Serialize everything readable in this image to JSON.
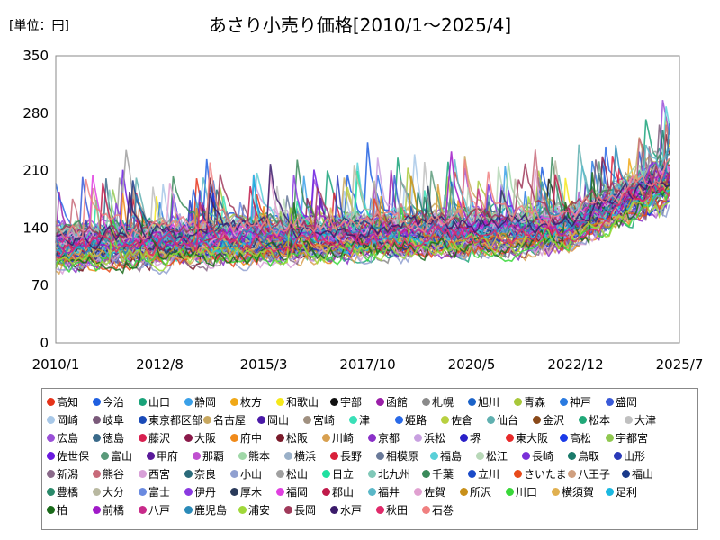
{
  "chart_data": {
    "type": "line",
    "title": "あさり小売り価格[2010/1～2025/4]",
    "unit_label": "[単位：円]",
    "x_ticks": [
      "2010/1",
      "2012/8",
      "2015/3",
      "2017/10",
      "2020/5",
      "2022/12",
      "2025/7"
    ],
    "x_range": [
      "2010/1",
      "2025/7"
    ],
    "y_ticks": [
      0,
      70,
      140,
      210,
      280,
      350
    ],
    "ylim": [
      0,
      350
    ],
    "grid": false,
    "legend_position": "bottom",
    "series": [
      {
        "name": "高知",
        "color": "#e6331a"
      },
      {
        "name": "今治",
        "color": "#1f5fe0"
      },
      {
        "name": "山口",
        "color": "#1aa37a"
      },
      {
        "name": "静岡",
        "color": "#3aa0e8"
      },
      {
        "name": "枚方",
        "color": "#f0a818"
      },
      {
        "name": "和歌山",
        "color": "#f5e81a"
      },
      {
        "name": "宇部",
        "color": "#111111"
      },
      {
        "name": "函館",
        "color": "#9a1fa8"
      },
      {
        "name": "札幌",
        "color": "#8a8a8a"
      },
      {
        "name": "旭川",
        "color": "#1a62c8"
      },
      {
        "name": "青森",
        "color": "#a8c83a"
      },
      {
        "name": "神戸",
        "color": "#2a7ae0"
      },
      {
        "name": "盛岡",
        "color": "#3a5ad8"
      },
      {
        "name": "岡崎",
        "color": "#a8c8e8"
      },
      {
        "name": "岐阜",
        "color": "#7a5a7a"
      },
      {
        "name": "東京都区部",
        "color": "#1a4ab8"
      },
      {
        "name": "名古屋",
        "color": "#c8a860"
      },
      {
        "name": "岡山",
        "color": "#4a1aa8"
      },
      {
        "name": "宮崎",
        "color": "#a09080"
      },
      {
        "name": "津",
        "color": "#3ae0b8"
      },
      {
        "name": "姫路",
        "color": "#2a6ae8"
      },
      {
        "name": "佐倉",
        "color": "#b8d040"
      },
      {
        "name": "仙台",
        "color": "#60b0b0"
      },
      {
        "name": "金沢",
        "color": "#8a4a1a"
      },
      {
        "name": "松本",
        "color": "#20a878"
      },
      {
        "name": "大津",
        "color": "#c0c0c0"
      },
      {
        "name": "広島",
        "color": "#9a50d8"
      },
      {
        "name": "徳島",
        "color": "#3a6a8a"
      },
      {
        "name": "藤沢",
        "color": "#d82050"
      },
      {
        "name": "大阪",
        "color": "#8a1a4a"
      },
      {
        "name": "府中",
        "color": "#f08a1a"
      },
      {
        "name": "松阪",
        "color": "#7a1a2a"
      },
      {
        "name": "川崎",
        "color": "#d8a050"
      },
      {
        "name": "京都",
        "color": "#8a30c8"
      },
      {
        "name": "浜松",
        "color": "#c8a0e0"
      },
      {
        "name": "堺",
        "color": "#2a20c8"
      },
      {
        "name": "東大阪",
        "color": "#e82a2a"
      },
      {
        "name": "高松",
        "color": "#1a3ae8"
      },
      {
        "name": "宇都宮",
        "color": "#90c850"
      },
      {
        "name": "佐世保",
        "color": "#6a1ae0"
      },
      {
        "name": "富山",
        "color": "#5a9a7a"
      },
      {
        "name": "甲府",
        "color": "#5a1a9a"
      },
      {
        "name": "那覇",
        "color": "#c050d0"
      },
      {
        "name": "熊本",
        "color": "#a0d8a8"
      },
      {
        "name": "横浜",
        "color": "#9ab0c8"
      },
      {
        "name": "長野",
        "color": "#d8203a"
      },
      {
        "name": "相模原",
        "color": "#6a7a9a"
      },
      {
        "name": "福島",
        "color": "#5ad0d8"
      },
      {
        "name": "松江",
        "color": "#b8d8b8"
      },
      {
        "name": "長崎",
        "color": "#7a30d8"
      },
      {
        "name": "鳥取",
        "color": "#1a7a6a"
      },
      {
        "name": "山形",
        "color": "#2a3ab8"
      },
      {
        "name": "新潟",
        "color": "#8a6a8a"
      },
      {
        "name": "熊谷",
        "color": "#c86a7a"
      },
      {
        "name": "西宮",
        "color": "#d8a0d8"
      },
      {
        "name": "奈良",
        "color": "#2a6a7a"
      },
      {
        "name": "小山",
        "color": "#90a0d0"
      },
      {
        "name": "松山",
        "color": "#a0a0a0"
      },
      {
        "name": "日立",
        "color": "#20e0a0"
      },
      {
        "name": "北九州",
        "color": "#80c8b8"
      },
      {
        "name": "千葉",
        "color": "#3a8a5a"
      },
      {
        "name": "立川",
        "color": "#1a4ac8"
      },
      {
        "name": "さいたま",
        "color": "#e84a1a"
      },
      {
        "name": "八王子",
        "color": "#d0a080"
      },
      {
        "name": "福山",
        "color": "#1a3a8a"
      },
      {
        "name": "豊橋",
        "color": "#2a8a6a"
      },
      {
        "name": "大分",
        "color": "#b8b8a0"
      },
      {
        "name": "富士",
        "color": "#6a8ae0"
      },
      {
        "name": "伊丹",
        "color": "#8a3ae0"
      },
      {
        "name": "厚木",
        "color": "#2a3a5a"
      },
      {
        "name": "福岡",
        "color": "#e040e0"
      },
      {
        "name": "郡山",
        "color": "#c01a4a"
      },
      {
        "name": "福井",
        "color": "#5ab8c8"
      },
      {
        "name": "佐賀",
        "color": "#e0a0d0"
      },
      {
        "name": "所沢",
        "color": "#c8901a"
      },
      {
        "name": "川口",
        "color": "#3ad83a"
      },
      {
        "name": "横須賀",
        "color": "#e0b050"
      },
      {
        "name": "足利",
        "color": "#1ab8e0"
      },
      {
        "name": "柏",
        "color": "#1a6a1a"
      },
      {
        "name": "前橋",
        "color": "#a01ac8"
      },
      {
        "name": "八戸",
        "color": "#c82a8a"
      },
      {
        "name": "鹿児島",
        "color": "#2a8ab8"
      },
      {
        "name": "浦安",
        "color": "#a0d83a"
      },
      {
        "name": "長岡",
        "color": "#a03a5a"
      },
      {
        "name": "水戸",
        "color": "#3a1a6a"
      },
      {
        "name": "秋田",
        "color": "#e02a6a"
      },
      {
        "name": "石巻",
        "color": "#f08080"
      }
    ]
  }
}
